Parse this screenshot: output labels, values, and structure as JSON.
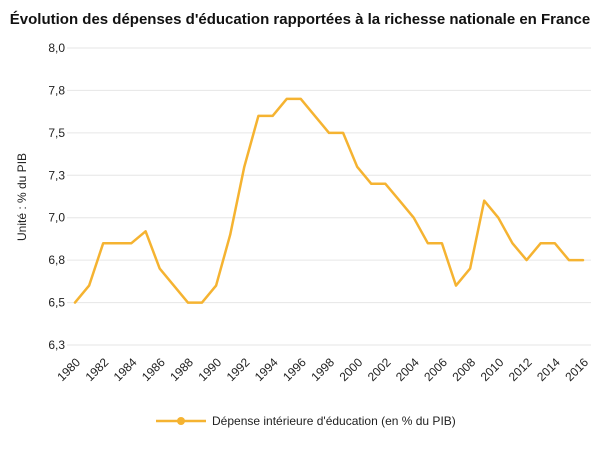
{
  "chart_data": {
    "type": "line",
    "title": "Évolution des dépenses d'éducation rapportées à la richesse nationale en France",
    "xlabel": "",
    "ylabel": "Unité : % du PIB",
    "ylim": [
      6.25,
      8.0
    ],
    "y_ticks": [
      "6,3",
      "6,5",
      "6,8",
      "7,0",
      "7,3",
      "7,5",
      "7,8",
      "8,0"
    ],
    "x_ticks": [
      "1980",
      "1982",
      "1984",
      "1986",
      "1988",
      "1990",
      "1992",
      "1994",
      "1996",
      "1998",
      "2000",
      "2002",
      "2004",
      "2006",
      "2008",
      "2010",
      "2012",
      "2014",
      "2016"
    ],
    "grid": true,
    "legend_position": "bottom",
    "color": "#f5b331",
    "series": [
      {
        "name": "Dépense intérieure d'éducation (en % du PIB)",
        "x": [
          1980,
          1981,
          1982,
          1983,
          1984,
          1985,
          1986,
          1987,
          1988,
          1989,
          1990,
          1991,
          1992,
          1993,
          1994,
          1995,
          1996,
          1997,
          1998,
          1999,
          2000,
          2001,
          2002,
          2003,
          2004,
          2005,
          2006,
          2007,
          2008,
          2009,
          2010,
          2011,
          2012,
          2013,
          2014,
          2015,
          2016
        ],
        "values": [
          6.5,
          6.6,
          6.85,
          6.85,
          6.85,
          6.92,
          6.7,
          6.6,
          6.5,
          6.5,
          6.6,
          6.9,
          7.3,
          7.6,
          7.6,
          7.7,
          7.7,
          7.6,
          7.5,
          7.5,
          7.3,
          7.2,
          7.2,
          7.1,
          7.0,
          6.85,
          6.85,
          6.6,
          6.7,
          7.1,
          7.0,
          6.85,
          6.75,
          6.85,
          6.85,
          6.75,
          6.75
        ]
      }
    ]
  }
}
